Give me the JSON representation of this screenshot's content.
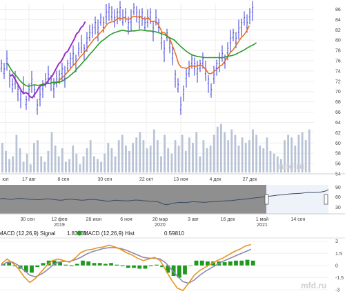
{
  "watermark": "mfd.ru",
  "chart_data": [
    {
      "type": "line",
      "panel": "price",
      "x_ticks": [
        "юл",
        "17 авг",
        "8 сен",
        "30 сен",
        "22 окт",
        "13 ноя",
        "4 дек",
        "27 дек"
      ],
      "y_ticks": [
        54,
        56,
        58,
        60,
        62,
        64,
        66,
        68,
        70,
        72,
        74,
        76,
        78,
        80,
        82,
        84,
        86
      ],
      "ylim": [
        54,
        87
      ],
      "series": [
        {
          "style": "ohlc-bars",
          "color": "#3a3ad8",
          "values": [
            75,
            74,
            76,
            73,
            71,
            72,
            70,
            69,
            71,
            68,
            70,
            72,
            70,
            67,
            69,
            71,
            72,
            73,
            72,
            71,
            72,
            73,
            74,
            73,
            75,
            76,
            77,
            76,
            78,
            79,
            78,
            80,
            81,
            82,
            83,
            82,
            84,
            83,
            85,
            86,
            85,
            84,
            85,
            86,
            84,
            85,
            83,
            84,
            86,
            85,
            84,
            85,
            83,
            84,
            85,
            82,
            84,
            83,
            80,
            78,
            81,
            79,
            77,
            73,
            71,
            67,
            70,
            73,
            74,
            76,
            75,
            74,
            75,
            76,
            74,
            72,
            70,
            73,
            75,
            76,
            77,
            76,
            78,
            80,
            81,
            80,
            82,
            83,
            84,
            83,
            85,
            86
          ]
        },
        {
          "color": "#9b2fc7",
          "values": [
            null,
            null,
            null,
            null,
            73,
            73.3,
            72.5,
            71.8,
            71,
            70.2,
            69.6,
            69.8,
            69.6,
            69,
            68.8,
            69.4,
            70,
            70.8,
            71.2,
            71.2,
            71.4,
            72,
            72.6,
            73,
            73.8,
            74.6,
            75.4,
            75.8,
            76.6,
            77.5,
            77.8,
            78.6,
            79.4,
            80.2,
            81.2,
            81.6,
            82.4,
            82.8,
            83.6
          ]
        },
        {
          "color": "#e86a1a",
          "values": [
            null,
            null,
            null,
            null,
            null,
            null,
            null,
            null,
            null,
            null,
            null,
            null,
            null,
            null,
            null,
            null,
            null,
            null,
            null,
            71.5,
            71.7,
            72,
            72.6,
            73,
            73.6,
            74.2,
            74.9,
            75.4,
            76.1,
            76.8,
            77.3,
            78,
            78.8,
            79.5,
            80.2,
            80.6,
            81.3,
            81.8,
            82.5,
            83.2,
            83.5,
            83.6,
            83.9,
            84.3,
            84.2,
            84.4,
            84.1,
            84.1,
            84.5,
            84.6,
            84.5,
            84.6,
            84.2,
            84.1,
            84.3,
            83.6,
            83.7,
            83.5,
            82.6,
            81.5,
            81.4,
            80.8,
            80,
            78.6,
            77.2,
            75.4,
            74.7,
            74.6,
            74.5,
            74.9,
            75,
            74.9,
            75,
            75.2,
            74.9,
            74.3,
            73.5,
            73.5,
            73.9,
            74.3,
            74.9,
            75.2,
            75.9,
            76.8,
            77.6,
            78.1,
            78.9,
            79.7,
            80.5,
            81,
            81.8,
            82.8
          ]
        },
        {
          "color": "#2a9a2a",
          "values": [
            null,
            null,
            75.5,
            74.5,
            73.6,
            73,
            72.2,
            71.6,
            71.2,
            71,
            71.2,
            71.3,
            71.2,
            71.3,
            71.5,
            71.5,
            71.6,
            71.8,
            71.8,
            71.8,
            72,
            72.4,
            72.8,
            73.3,
            73.8,
            74.5,
            75.1,
            75.8,
            76.4,
            77.2,
            77.8,
            78.5,
            79.2,
            79.8,
            80.2,
            80.7,
            81.1,
            81.4,
            81.6,
            81.8,
            81.9,
            81.8,
            81.7,
            81.8,
            81.8,
            81.9,
            82,
            81.9,
            81.8,
            81.8,
            81.7,
            81.6,
            81.4,
            81.2,
            81,
            80.6,
            80.3,
            80,
            79.4,
            78.8,
            78.3,
            77.8,
            77.4,
            77.1,
            76.9,
            76.8,
            76.7,
            76.6,
            76.6,
            76.6,
            76.6,
            76.6,
            76.6,
            76.6,
            76.8,
            76.9,
            77,
            77.2,
            77.5,
            77.8,
            78.1,
            78.5,
            78.8,
            79.1,
            79.5
          ]
        }
      ]
    },
    {
      "type": "bar",
      "panel": "volume",
      "color": "#b9c3d6",
      "values": [
        0.55,
        0.4,
        0.25,
        0.3,
        0.7,
        0.45,
        0.2,
        0.35,
        0.15,
        0.55,
        0.6,
        0.3,
        0.2,
        0.4,
        0.75,
        0.5,
        0.3,
        0.45,
        0.2,
        0.25,
        0.5,
        0.35,
        0.15,
        0.3,
        0.45,
        0.6,
        0.3,
        0.25,
        0.2,
        0.35,
        0.55,
        0.45,
        0.3,
        0.6,
        0.7,
        0.5,
        0.4,
        0.55,
        0.65,
        0.75,
        0.6,
        0.45,
        0.5,
        0.8,
        0.6,
        0.3,
        0.7,
        0.45,
        0.35,
        0.6,
        0.5,
        0.7,
        0.4,
        0.65,
        0.55,
        0.75,
        0.3,
        0.6,
        0.45,
        0.5,
        0.7,
        0.85,
        0.9,
        0.75,
        0.6,
        0.8,
        0.7,
        0.5,
        0.65,
        0.55,
        0.6,
        0.8,
        0.7,
        0.5,
        0.45,
        0.65,
        0.4,
        0.35,
        0.3,
        0.25,
        0.6,
        0.7,
        0.65,
        0.5,
        0.7,
        0.75,
        0.6,
        0.8
      ]
    },
    {
      "type": "area",
      "panel": "navigator",
      "x_ticks": [
        "30 сен",
        "12 фев 2019",
        "26 июн",
        "6 ноя",
        "20 мар 2020",
        "3 авг",
        "16 дек",
        "1 май 2021",
        "14 сен"
      ],
      "y_ticks": [
        30,
        60,
        90
      ],
      "values": [
        0.58,
        0.6,
        0.57,
        0.56,
        0.58,
        0.6,
        0.59,
        0.57,
        0.56,
        0.55,
        0.54,
        0.56,
        0.58,
        0.57,
        0.55,
        0.53,
        0.52,
        0.55,
        0.57,
        0.56,
        0.54,
        0.52,
        0.53,
        0.55,
        0.56,
        0.54,
        0.52,
        0.5,
        0.48,
        0.5,
        0.52,
        0.51,
        0.5,
        0.49,
        0.51,
        0.53,
        0.52,
        0.5,
        0.49,
        0.48,
        0.47,
        0.45,
        0.38,
        0.33,
        0.36,
        0.4,
        0.42,
        0.43,
        0.42,
        0.44,
        0.46,
        0.45,
        0.44,
        0.43,
        0.45,
        0.46,
        0.47,
        0.48,
        0.49,
        0.5,
        0.51,
        0.53,
        0.55,
        0.56,
        0.58,
        0.6,
        0.62,
        0.64,
        0.66,
        0.68,
        0.7,
        0.72,
        0.74,
        0.75,
        0.77,
        0.79,
        0.8,
        0.81,
        0.82,
        0.84,
        0.86,
        0.85,
        0.86,
        0.87,
        0.9,
        0.97
      ]
    },
    {
      "type": "line",
      "panel": "macd",
      "legend": [
        {
          "label": "MACD (12,26,9) Signal",
          "value": "1.83131",
          "color": "#7a7a9a"
        },
        {
          "label": "MACD (12,26,9) Hist",
          "value": "0.59810",
          "color": "#1f9a1f"
        }
      ],
      "y_ticks": [
        3,
        1.5,
        0,
        -1.5,
        -3
      ],
      "ylim": [
        -3.6,
        3.4
      ],
      "series": [
        {
          "color": "#e8931c",
          "values": [
            0.2,
            0.8,
            0.3,
            -0.4,
            -1.4,
            -2.1,
            -1.6,
            -0.8,
            0,
            0.6,
            0.8,
            0.6,
            0.4,
            0.9,
            1.6,
            1.9,
            2,
            2.2,
            2.3,
            2.5,
            2.3,
            2,
            1.6,
            1.3,
            0.9,
            0.6,
            0.8,
            1,
            0.6,
            -0.6,
            -1.8,
            -2.8,
            -3.1,
            -2.2,
            -1.2,
            -0.6,
            -0.2,
            0.2,
            0.6,
            0.9,
            1.3,
            1.7,
            2,
            2.4,
            2.6
          ]
        },
        {
          "color": "#8a8ab0",
          "values": [
            0,
            0.4,
            0.4,
            0,
            -0.6,
            -1.2,
            -1.4,
            -1.1,
            -0.6,
            0,
            0.4,
            0.5,
            0.5,
            0.7,
            1,
            1.4,
            1.7,
            1.9,
            2.1,
            2.2,
            2.2,
            2.1,
            1.9,
            1.6,
            1.3,
            1,
            0.9,
            0.9,
            0.8,
            0.3,
            -0.5,
            -1.3,
            -2,
            -2.2,
            -1.8,
            -1.2,
            -0.7,
            -0.3,
            0.1,
            0.5,
            0.8,
            1.1,
            1.4,
            1.7,
            2
          ]
        },
        {
          "color": "#1f9a1f",
          "style": "histogram",
          "values": [
            0.2,
            0.4,
            -0.1,
            -0.4,
            -0.8,
            -0.9,
            -0.2,
            0.3,
            0.6,
            0.6,
            0.4,
            0.1,
            -0.1,
            0.2,
            0.6,
            0.5,
            0.3,
            0.3,
            0.2,
            0.3,
            0.1,
            -0.1,
            -0.3,
            -0.3,
            -0.4,
            -0.4,
            -0.1,
            0.1,
            -0.2,
            -0.9,
            -1.3,
            -1.5,
            -1.1,
            0,
            0.6,
            0.6,
            0.5,
            0.5,
            0.5,
            0.4,
            0.5,
            0.6,
            0.6,
            0.7,
            0.6
          ]
        }
      ]
    }
  ]
}
